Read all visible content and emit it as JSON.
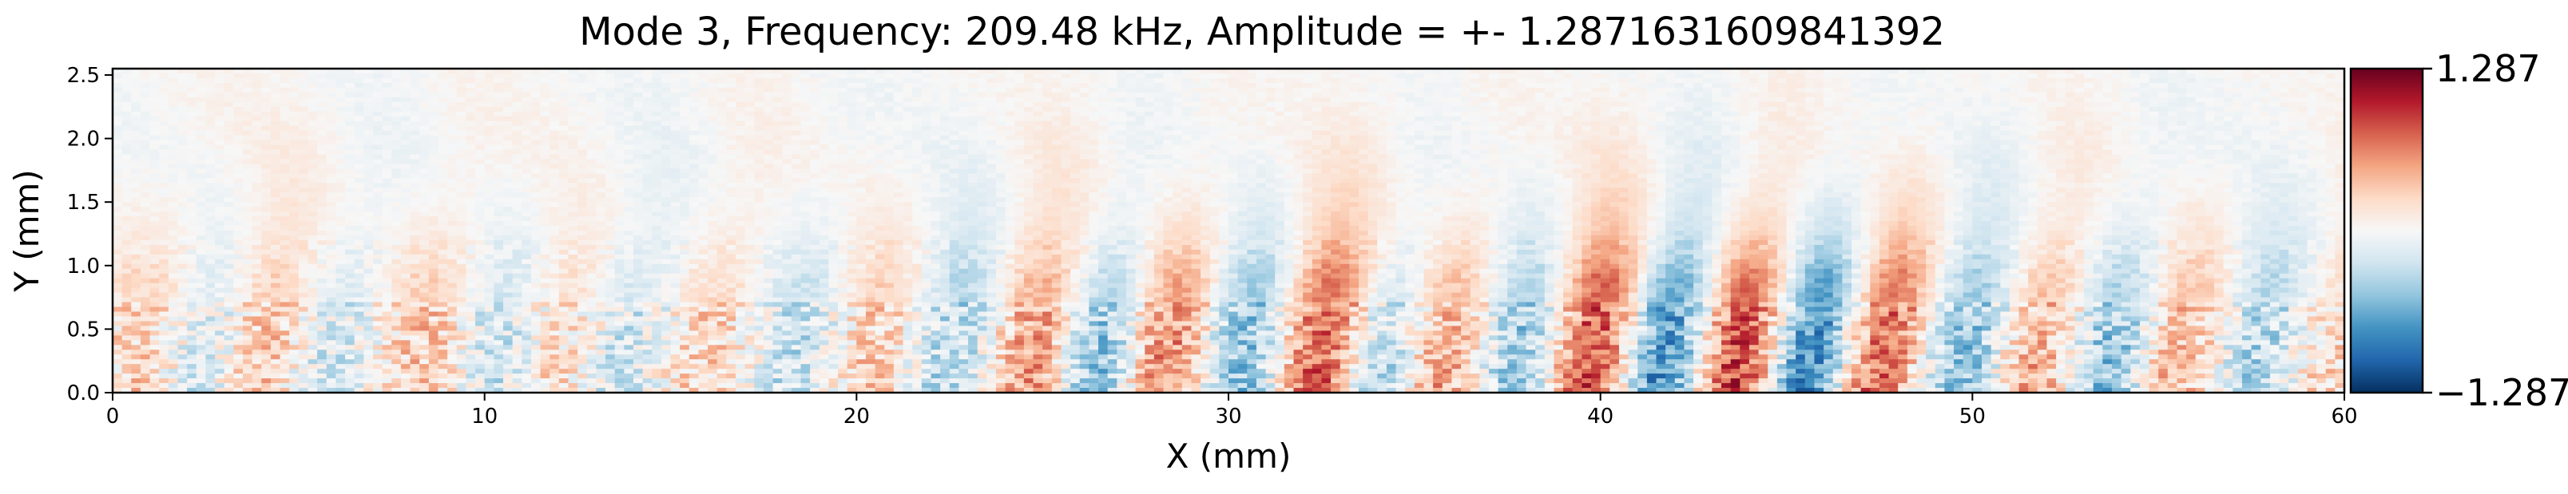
{
  "chart_data": {
    "type": "heatmap",
    "title": "Mode 3, Frequency: 209.48 kHz, Amplitude = +- 1.2871631609841392",
    "xlabel": "X (mm)",
    "ylabel": "Y (mm)",
    "xlim": [
      0,
      60
    ],
    "ylim": [
      0,
      2.55
    ],
    "x_ticks": [
      "0",
      "10",
      "20",
      "30",
      "40",
      "50",
      "60"
    ],
    "y_ticks": [
      "0.0",
      "0.5",
      "1.0",
      "1.5",
      "2.0",
      "2.5"
    ],
    "colorbar": {
      "colormap": "RdBu_r",
      "vmin": -1.287,
      "vmax": 1.287,
      "max_label": "1.287",
      "min_label": "−1.287",
      "colors": [
        "#053061",
        "#2166ac",
        "#4393c3",
        "#92c5de",
        "#d1e5f0",
        "#f7f7f7",
        "#fddbc7",
        "#f4a582",
        "#d6604d",
        "#b2182b",
        "#67001f"
      ]
    },
    "wave_packets": [
      {
        "x": 0.8,
        "amp": 0.35
      },
      {
        "x": 2.2,
        "amp": -0.35
      },
      {
        "x": 3.8,
        "amp": 0.45
      },
      {
        "x": 5.6,
        "amp": -0.25
      },
      {
        "x": 8.2,
        "amp": 0.35
      },
      {
        "x": 10.2,
        "amp": -0.3
      },
      {
        "x": 11.8,
        "amp": 0.3
      },
      {
        "x": 13.6,
        "amp": -0.3
      },
      {
        "x": 15.8,
        "amp": 0.3
      },
      {
        "x": 18.2,
        "amp": -0.3
      },
      {
        "x": 20.3,
        "amp": 0.35
      },
      {
        "x": 22.4,
        "amp": -0.45
      },
      {
        "x": 24.6,
        "amp": 0.65
      },
      {
        "x": 26.4,
        "amp": -0.65
      },
      {
        "x": 28.1,
        "amp": 0.7
      },
      {
        "x": 30.3,
        "amp": -0.6
      },
      {
        "x": 32.3,
        "amp": 0.95
      },
      {
        "x": 34.0,
        "amp": -0.55
      },
      {
        "x": 35.6,
        "amp": 0.6
      },
      {
        "x": 37.6,
        "amp": -0.55
      },
      {
        "x": 39.7,
        "amp": 1.05
      },
      {
        "x": 41.5,
        "amp": -1.0
      },
      {
        "x": 43.6,
        "amp": 1.05
      },
      {
        "x": 45.5,
        "amp": -1.05
      },
      {
        "x": 47.3,
        "amp": 0.9
      },
      {
        "x": 49.6,
        "amp": -0.6
      },
      {
        "x": 51.6,
        "amp": 0.55
      },
      {
        "x": 53.6,
        "amp": -0.6
      },
      {
        "x": 55.3,
        "amp": 0.5
      },
      {
        "x": 57.6,
        "amp": -0.45
      },
      {
        "x": 59.3,
        "amp": 0.3
      }
    ]
  }
}
